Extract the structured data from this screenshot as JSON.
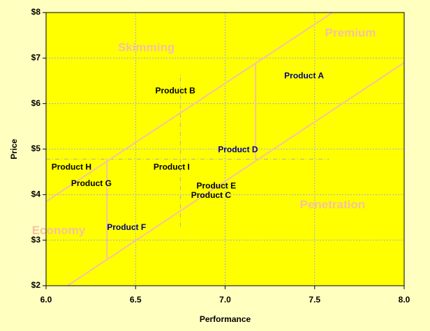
{
  "chart_data": {
    "type": "scatter",
    "xlabel": "Performance",
    "ylabel": "Price",
    "xlim": [
      6.0,
      8.0
    ],
    "ylim": [
      2,
      8
    ],
    "x_ticks": [
      "6.0",
      "6.5",
      "7.0",
      "7.5",
      "8.0"
    ],
    "y_ticks": [
      "$2",
      "$3",
      "$4",
      "$5",
      "$6",
      "$7",
      "$8"
    ],
    "grid": true,
    "points": [
      {
        "label": "Product A",
        "x": 7.33,
        "y": 6.6,
        "color": "#000080"
      },
      {
        "label": "Product B",
        "x": 6.61,
        "y": 6.27,
        "color": "#000000"
      },
      {
        "label": "Product C",
        "x": 6.81,
        "y": 3.98,
        "color": "#000000"
      },
      {
        "label": "Product D",
        "x": 6.96,
        "y": 4.98,
        "color": "#000080"
      },
      {
        "label": "Product E",
        "x": 6.84,
        "y": 4.18,
        "color": "#000000"
      },
      {
        "label": "Product F",
        "x": 6.34,
        "y": 3.27,
        "color": "#000080"
      },
      {
        "label": "Product G",
        "x": 6.14,
        "y": 4.24,
        "color": "#000000"
      },
      {
        "label": "Product H",
        "x": 6.03,
        "y": 4.6,
        "color": "#000000"
      },
      {
        "label": "Product I",
        "x": 6.6,
        "y": 4.6,
        "color": "#000000"
      }
    ],
    "regions": [
      {
        "label": "Premium",
        "x": 7.7,
        "y": 7.54
      },
      {
        "label": "Skimming",
        "x": 6.56,
        "y": 7.22
      },
      {
        "label": "Penetration",
        "x": 7.6,
        "y": 3.77
      },
      {
        "label": "Economy",
        "x": 6.07,
        "y": 3.2
      }
    ],
    "boundary_lines": [
      {
        "x1": 6.0,
        "y1": 3.85,
        "x2": 7.6,
        "y2": 8.0
      },
      {
        "x1": 6.12,
        "y1": 2.0,
        "x2": 8.0,
        "y2": 6.9
      }
    ],
    "segments": [
      {
        "x1": 6.34,
        "y1": 2.6,
        "x2": 6.34,
        "y2": 4.8
      },
      {
        "x1": 7.17,
        "y1": 4.78,
        "x2": 7.17,
        "y2": 6.9
      }
    ],
    "reference_lines": [
      {
        "x1": 6.0,
        "y1": 4.78,
        "x2": 7.58,
        "y2": 4.78
      },
      {
        "x1": 6.75,
        "y1": 3.3,
        "x2": 6.75,
        "y2": 6.65
      }
    ],
    "colors": {
      "background": "#ffffc0",
      "plot_background": "#ffff00",
      "gridline": "#9aa8ff",
      "boundary": "#f4c3a0",
      "reference": "#b0b0b0"
    }
  }
}
